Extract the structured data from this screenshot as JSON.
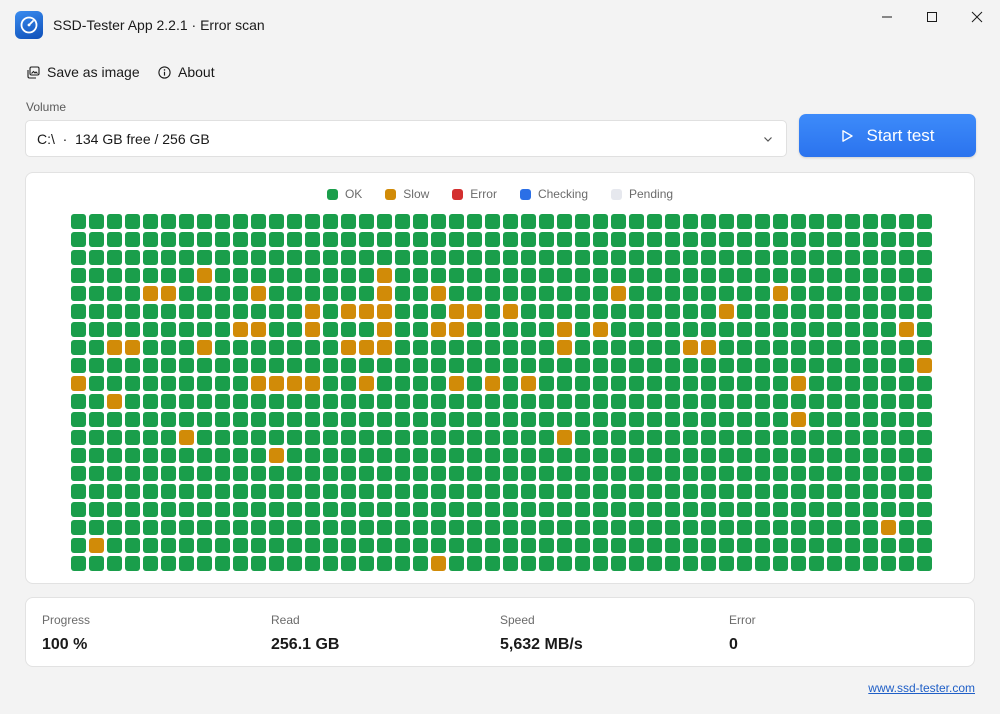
{
  "window": {
    "title": "SSD-Tester App 2.2.1 · Error scan"
  },
  "toolbar": {
    "save_label": "Save as image",
    "about_label": "About"
  },
  "volume": {
    "label": "Volume",
    "selected": "C:\\  ·  134 GB free / 256 GB"
  },
  "start_button": {
    "label": "Start test"
  },
  "legend": [
    {
      "key": "ok",
      "label": "OK",
      "color": "#1a9e4b"
    },
    {
      "key": "slow",
      "label": "Slow",
      "color": "#d18b08"
    },
    {
      "key": "error",
      "label": "Error",
      "color": "#d32f2f"
    },
    {
      "key": "checking",
      "label": "Checking",
      "color": "#2b6fe6"
    },
    {
      "key": "pending",
      "label": "Pending",
      "color": "#e6e8ee"
    }
  ],
  "block_map": {
    "columns": 48,
    "rows": 20,
    "slow_blocks": [
      [
        3,
        7
      ],
      [
        3,
        17
      ],
      [
        4,
        4
      ],
      [
        4,
        5
      ],
      [
        4,
        10
      ],
      [
        4,
        17
      ],
      [
        4,
        20
      ],
      [
        4,
        30
      ],
      [
        4,
        39
      ],
      [
        5,
        13
      ],
      [
        5,
        15
      ],
      [
        5,
        16
      ],
      [
        5,
        17
      ],
      [
        5,
        21
      ],
      [
        5,
        22
      ],
      [
        5,
        24
      ],
      [
        5,
        36
      ],
      [
        6,
        9
      ],
      [
        6,
        10
      ],
      [
        6,
        13
      ],
      [
        6,
        17
      ],
      [
        6,
        20
      ],
      [
        6,
        21
      ],
      [
        6,
        27
      ],
      [
        6,
        29
      ],
      [
        6,
        46
      ],
      [
        7,
        2
      ],
      [
        7,
        3
      ],
      [
        7,
        7
      ],
      [
        7,
        15
      ],
      [
        7,
        16
      ],
      [
        7,
        17
      ],
      [
        7,
        27
      ],
      [
        7,
        34
      ],
      [
        7,
        35
      ],
      [
        8,
        47
      ],
      [
        9,
        0
      ],
      [
        9,
        10
      ],
      [
        9,
        11
      ],
      [
        9,
        12
      ],
      [
        9,
        13
      ],
      [
        9,
        16
      ],
      [
        9,
        21
      ],
      [
        9,
        23
      ],
      [
        9,
        25
      ],
      [
        9,
        40
      ],
      [
        10,
        2
      ],
      [
        11,
        40
      ],
      [
        12,
        6
      ],
      [
        12,
        27
      ],
      [
        13,
        11
      ],
      [
        17,
        45
      ],
      [
        18,
        1
      ],
      [
        19,
        20
      ]
    ]
  },
  "stats": {
    "progress": {
      "label": "Progress",
      "value": "100 %"
    },
    "read": {
      "label": "Read",
      "value": "256.1 GB"
    },
    "speed": {
      "label": "Speed",
      "value": "5,632 MB/s"
    },
    "error": {
      "label": "Error",
      "value": "0"
    }
  },
  "footer": {
    "link": "www.ssd-tester.com"
  }
}
